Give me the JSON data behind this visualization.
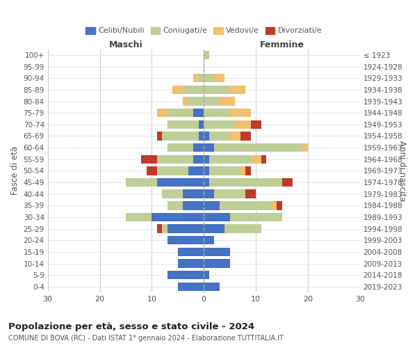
{
  "age_groups": [
    "0-4",
    "5-9",
    "10-14",
    "15-19",
    "20-24",
    "25-29",
    "30-34",
    "35-39",
    "40-44",
    "45-49",
    "50-54",
    "55-59",
    "60-64",
    "65-69",
    "70-74",
    "75-79",
    "80-84",
    "85-89",
    "90-94",
    "95-99",
    "100+"
  ],
  "birth_years": [
    "2019-2023",
    "2014-2018",
    "2009-2013",
    "2004-2008",
    "1999-2003",
    "1994-1998",
    "1989-1993",
    "1984-1988",
    "1979-1983",
    "1974-1978",
    "1969-1973",
    "1964-1968",
    "1959-1963",
    "1954-1958",
    "1949-1953",
    "1944-1948",
    "1939-1943",
    "1934-1938",
    "1929-1933",
    "1924-1928",
    "≤ 1923"
  ],
  "maschi": {
    "celibi": [
      5,
      7,
      5,
      5,
      7,
      7,
      10,
      4,
      4,
      9,
      3,
      2,
      2,
      1,
      1,
      2,
      0,
      0,
      0,
      0,
      0
    ],
    "coniugati": [
      0,
      0,
      0,
      0,
      0,
      1,
      5,
      3,
      4,
      6,
      6,
      7,
      5,
      7,
      6,
      5,
      3,
      4,
      1,
      0,
      0
    ],
    "vedovi": [
      0,
      0,
      0,
      0,
      0,
      0,
      0,
      0,
      0,
      0,
      0,
      0,
      0,
      0,
      0,
      2,
      1,
      2,
      1,
      0,
      0
    ],
    "divorziati": [
      0,
      0,
      0,
      0,
      0,
      1,
      0,
      0,
      0,
      0,
      2,
      3,
      0,
      1,
      0,
      0,
      0,
      0,
      0,
      0,
      0
    ]
  },
  "femmine": {
    "nubili": [
      3,
      1,
      5,
      5,
      2,
      4,
      5,
      3,
      2,
      1,
      1,
      1,
      2,
      1,
      0,
      0,
      0,
      0,
      0,
      0,
      0
    ],
    "coniugate": [
      0,
      0,
      0,
      0,
      0,
      7,
      10,
      10,
      6,
      14,
      6,
      8,
      17,
      4,
      6,
      5,
      3,
      5,
      2,
      0,
      1
    ],
    "vedove": [
      0,
      0,
      0,
      0,
      0,
      0,
      0,
      1,
      0,
      0,
      1,
      2,
      1,
      2,
      3,
      4,
      3,
      3,
      2,
      0,
      0
    ],
    "divorziate": [
      0,
      0,
      0,
      0,
      0,
      0,
      0,
      1,
      2,
      2,
      1,
      1,
      0,
      2,
      2,
      0,
      0,
      0,
      0,
      0,
      0
    ]
  },
  "colors": {
    "celibi": "#4472C4",
    "coniugati": "#BFCE96",
    "vedovi": "#F0C070",
    "divorziati": "#C0392B"
  },
  "xlim": 30,
  "title_main": "Popolazione per età, sesso e stato civile - 2024",
  "title_sub": "COMUNE DI BOVA (RC) - Dati ISTAT 1° gennaio 2024 - Elaborazione TUTTITALIA.IT",
  "legend_labels": [
    "Celibi/Nubili",
    "Coniugati/e",
    "Vedovi/e",
    "Divorziati/e"
  ],
  "ylabel_left": "Fasce di età",
  "ylabel_right": "Anni di nascita",
  "xlabel_maschi": "Maschi",
  "xlabel_femmine": "Femmine",
  "background_color": "#ffffff",
  "bar_height": 0.75
}
